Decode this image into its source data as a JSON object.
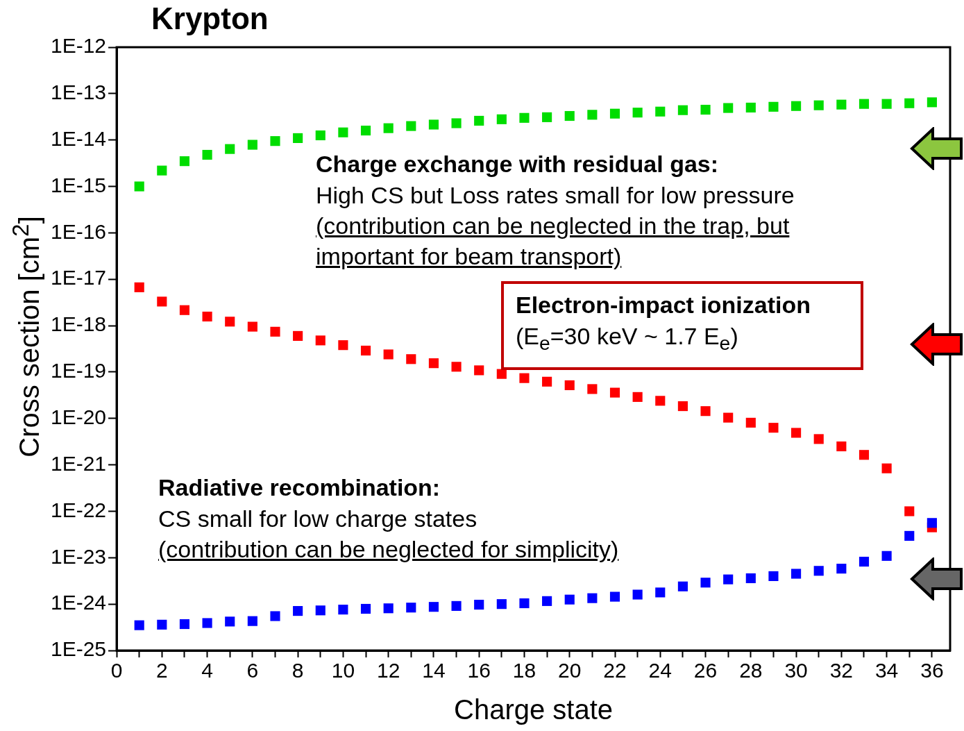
{
  "chart_data": {
    "type": "scatter",
    "title": "Krypton",
    "xlabel": "Charge state",
    "ylabel": "Cross section [cm$^{2}$]",
    "x": [
      1,
      2,
      3,
      4,
      5,
      6,
      7,
      8,
      9,
      10,
      11,
      12,
      13,
      14,
      15,
      16,
      17,
      18,
      19,
      20,
      21,
      22,
      23,
      24,
      25,
      26,
      27,
      28,
      29,
      30,
      31,
      32,
      33,
      34,
      35,
      36
    ],
    "series": [
      {
        "color": "#00dd00",
        "values": [
          1e-15,
          2.2e-15,
          3.5e-15,
          4.8e-15,
          6.4e-15,
          7.9e-15,
          9.5e-15,
          1.1e-14,
          1.26e-14,
          1.46e-14,
          1.6e-14,
          1.8e-14,
          2e-14,
          2.15e-14,
          2.3e-14,
          2.6e-14,
          2.8e-14,
          3e-14,
          3.1e-14,
          3.3e-14,
          3.5e-14,
          3.7e-14,
          3.9e-14,
          4.1e-14,
          4.4e-14,
          4.5e-14,
          4.9e-14,
          5e-14,
          5.2e-14,
          5.4e-14,
          5.6e-14,
          5.8e-14,
          6e-14,
          6e-14,
          6.2e-14,
          6.5e-14
        ]
      },
      {
        "color": "#ff0000",
        "values": [
          6.7e-18,
          3.3e-18,
          2.16e-18,
          1.57e-18,
          1.22e-18,
          9.5e-19,
          7.4e-19,
          6e-19,
          4.8e-19,
          3.8e-19,
          2.9e-19,
          2.4e-19,
          1.9e-19,
          1.55e-19,
          1.3e-19,
          1.09e-19,
          9.1e-20,
          7.4e-20,
          6.2e-20,
          5.2e-20,
          4.3e-20,
          3.6e-20,
          2.9e-20,
          2.4e-20,
          1.84e-20,
          1.44e-20,
          1.04e-20,
          8.1e-21,
          6.3e-21,
          4.9e-21,
          3.6e-21,
          2.5e-21,
          1.64e-21,
          8.4e-22,
          1e-22,
          4.5e-23
        ]
      },
      {
        "color": "#0000ff",
        "values": [
          3.5e-25,
          3.6e-25,
          3.7e-25,
          3.9e-25,
          4.2e-25,
          4.3e-25,
          5.5e-25,
          7.1e-25,
          7.3e-25,
          7.6e-25,
          7.9e-25,
          8.1e-25,
          8.4e-25,
          8.7e-25,
          9.1e-25,
          9.7e-25,
          1e-24,
          1.04e-24,
          1.16e-24,
          1.25e-24,
          1.34e-24,
          1.44e-24,
          1.6e-24,
          1.78e-24,
          2.4e-24,
          2.9e-24,
          3.4e-24,
          3.6e-24,
          4e-24,
          4.5e-24,
          5.2e-24,
          5.8e-24,
          8.2e-24,
          1.09e-23,
          2.95e-23,
          5.6e-23
        ]
      }
    ],
    "xlim": [
      0,
      36.8
    ],
    "xticks": [
      0,
      {
        "value": 1,
        "label": null
      },
      2,
      {
        "value": 3,
        "label": null
      },
      4,
      {
        "value": 5,
        "label": null
      },
      6,
      {
        "value": 7,
        "label": null
      },
      8,
      {
        "value": 9,
        "label": null
      },
      10,
      {
        "value": 11,
        "label": null
      },
      12,
      {
        "value": 13,
        "label": null
      },
      14,
      {
        "value": 15,
        "label": null
      },
      16,
      {
        "value": 17,
        "label": null
      },
      18,
      {
        "value": 19,
        "label": null
      },
      20,
      {
        "value": 21,
        "label": null
      },
      22,
      {
        "value": 23,
        "label": null
      },
      24,
      {
        "value": 25,
        "label": null
      },
      26,
      {
        "value": 27,
        "label": null
      },
      28,
      {
        "value": 29,
        "label": null
      },
      30,
      {
        "value": 31,
        "label": null
      },
      32,
      {
        "value": 33,
        "label": null
      },
      34,
      {
        "value": 35,
        "label": null
      },
      36
    ],
    "ylim": [
      1e-25,
      1e-12
    ],
    "yticks": [
      {
        "value": 1e-25,
        "label": "1E-25"
      },
      {
        "value": 1e-24,
        "label": "1E-24"
      },
      {
        "value": 1e-23,
        "label": "1E-23"
      },
      {
        "value": 1e-22,
        "label": "1E-22"
      },
      {
        "value": 1e-21,
        "label": "1E-21"
      },
      {
        "value": 1e-20,
        "label": "1E-20"
      },
      {
        "value": 1e-19,
        "label": "1E-19"
      },
      {
        "value": 1e-18,
        "label": "1E-18"
      },
      {
        "value": 1e-17,
        "label": "1E-17"
      },
      {
        "value": 1e-16,
        "label": "1E-16"
      },
      {
        "value": 1e-15,
        "label": "1E-15"
      },
      {
        "value": 1e-14,
        "label": "1E-14"
      },
      {
        "value": 1e-13,
        "label": "1E-13"
      },
      {
        "value": 1e-12,
        "label": "1E-12"
      }
    ],
    "log": "y",
    "grid": false,
    "legend": false,
    "marker": "square",
    "annotations": [
      "Charge exchange with residual gas:",
      "High CS but Loss rates small for low pressure",
      "(contribution can be neglected in the trap, but important for beam transport)",
      "Electron-impact ionization",
      "(E$_{e}$=30 keV ~ 1.7 E$_{e}$)",
      "Radiative recombination:",
      "CS small for low charge states",
      "(contribution can be neglected for simplicity)"
    ]
  }
}
